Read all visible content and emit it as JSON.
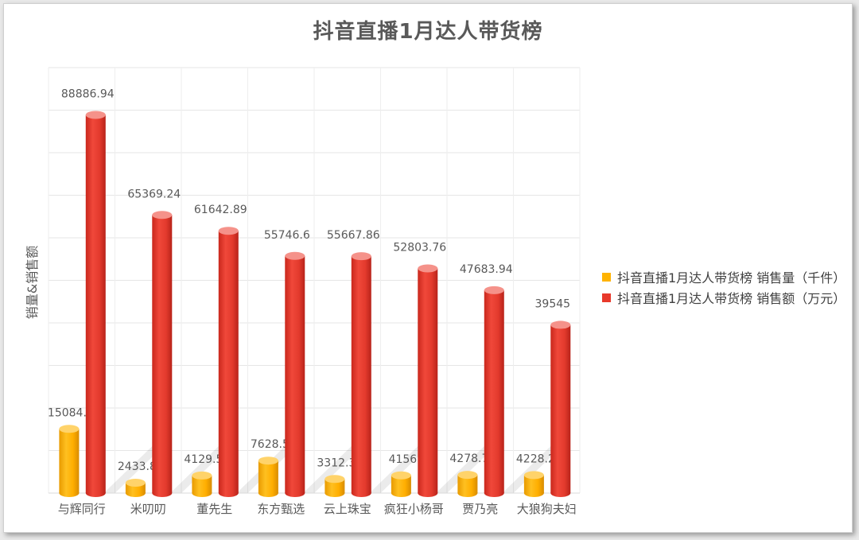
{
  "chart_data": {
    "type": "bar",
    "title": "抖音直播1月达人带货榜",
    "ylabel": "销量&销售额",
    "categories": [
      "与辉同行",
      "米叨叨",
      "董先生",
      "东方甄选",
      "云上珠宝",
      "疯狂小杨哥",
      "贾乃亮",
      "大狼狗夫妇"
    ],
    "series": [
      {
        "name": "抖音直播1月达人带货榜 销售量（千件）",
        "color": "#ffb300",
        "values": [
          15084.7,
          2433.8,
          4129.5,
          7628.5,
          3312.3,
          4156,
          4278.7,
          4228.2
        ],
        "labels": [
          "15084.7",
          "2433.8",
          "4129.5",
          "7628.5",
          "3312.3",
          "4156",
          "4278.7",
          "4228.2"
        ]
      },
      {
        "name": "抖音直播1月达人带货榜 销售额（万元）",
        "color": "#e8392b",
        "values": [
          88886.94,
          65369.24,
          61642.89,
          55746.6,
          55667.86,
          52803.76,
          47683.94,
          39545
        ],
        "labels": [
          "88886.94",
          "65369.24",
          "61642.89",
          "55746.6",
          "55667.86",
          "52803.76",
          "47683.94",
          "39545"
        ]
      }
    ],
    "ylim": [
      0,
      100000
    ],
    "grid": true,
    "legend_position": "right"
  }
}
